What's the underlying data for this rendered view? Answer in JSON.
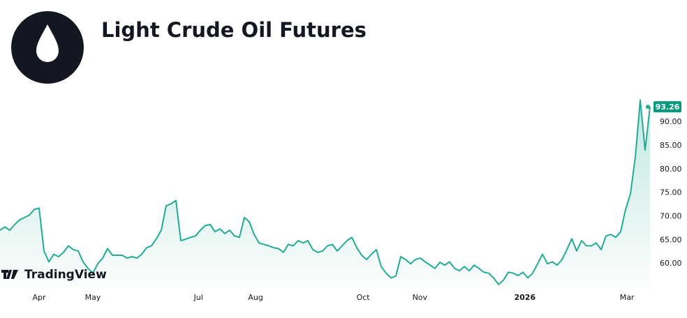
{
  "chart_data": {
    "type": "area",
    "title": "Light Crude Oil Futures",
    "brand": "TradingView",
    "color": "#22ab94",
    "values": [
      67.1,
      67.8,
      67.1,
      68.3,
      69.3,
      69.8,
      70.3,
      71.5,
      71.8,
      62.7,
      60.4,
      62,
      61.5,
      62.4,
      63.8,
      63,
      62.7,
      60.4,
      59,
      58,
      60,
      61.2,
      63.2,
      61.8,
      61.8,
      61.8,
      61.2,
      61.5,
      61.2,
      62,
      63.4,
      63.8,
      65.3,
      67.1,
      72.3,
      72.7,
      73.4,
      64.9,
      65.2,
      65.6,
      65.9,
      67.1,
      68.1,
      68.3,
      66.8,
      67.4,
      66.4,
      67.1,
      65.9,
      65.6,
      69.8,
      68.9,
      66.2,
      64.4,
      64.1,
      63.8,
      63.4,
      63.2,
      62.4,
      64.1,
      63.8,
      64.9,
      64.4,
      64.9,
      63,
      62.4,
      62.7,
      63.8,
      64.1,
      62.7,
      63.8,
      64.9,
      65.6,
      63.4,
      61.8,
      60.9,
      62,
      63,
      59.4,
      58,
      57,
      57.4,
      61.5,
      60.9,
      60,
      60.9,
      61.2,
      60.4,
      59.7,
      59,
      60.3,
      59.7,
      60.4,
      59,
      58.5,
      59.4,
      58.5,
      59.7,
      59,
      58.2,
      58,
      57,
      55.6,
      56.5,
      58.2,
      58,
      57.5,
      58.2,
      57,
      58,
      60,
      62,
      60,
      60.4,
      59.7,
      60.9,
      63,
      65.3,
      62.7,
      64.9,
      63.8,
      63.8,
      64.4,
      63,
      65.9,
      66.2,
      65.6,
      66.8,
      71.5,
      74.8,
      82.6,
      94.7,
      84.1,
      93.26
    ],
    "xlim": [
      0,
      133
    ],
    "xticks": [
      {
        "value": 8,
        "label": "Apr"
      },
      {
        "value": 19,
        "label": "May"
      },
      {
        "value": 40.6,
        "label": "Jul"
      },
      {
        "value": 52.3,
        "label": "Aug"
      },
      {
        "value": 74.3,
        "label": "Oct"
      },
      {
        "value": 85.9,
        "label": "Nov"
      },
      {
        "value": 107.4,
        "label": "2026"
      },
      {
        "value": 128.3,
        "label": "Mar"
      }
    ],
    "ylim": [
      55,
      95.5
    ],
    "yticks": [
      {
        "value": 60,
        "label": "60.00"
      },
      {
        "value": 65,
        "label": "65.00"
      },
      {
        "value": 70,
        "label": "70.00"
      },
      {
        "value": 75,
        "label": "75.00"
      },
      {
        "value": 80,
        "label": "80.00"
      },
      {
        "value": 85,
        "label": "85.00"
      },
      {
        "value": 90,
        "label": "90.00"
      }
    ],
    "grid": false
  }
}
